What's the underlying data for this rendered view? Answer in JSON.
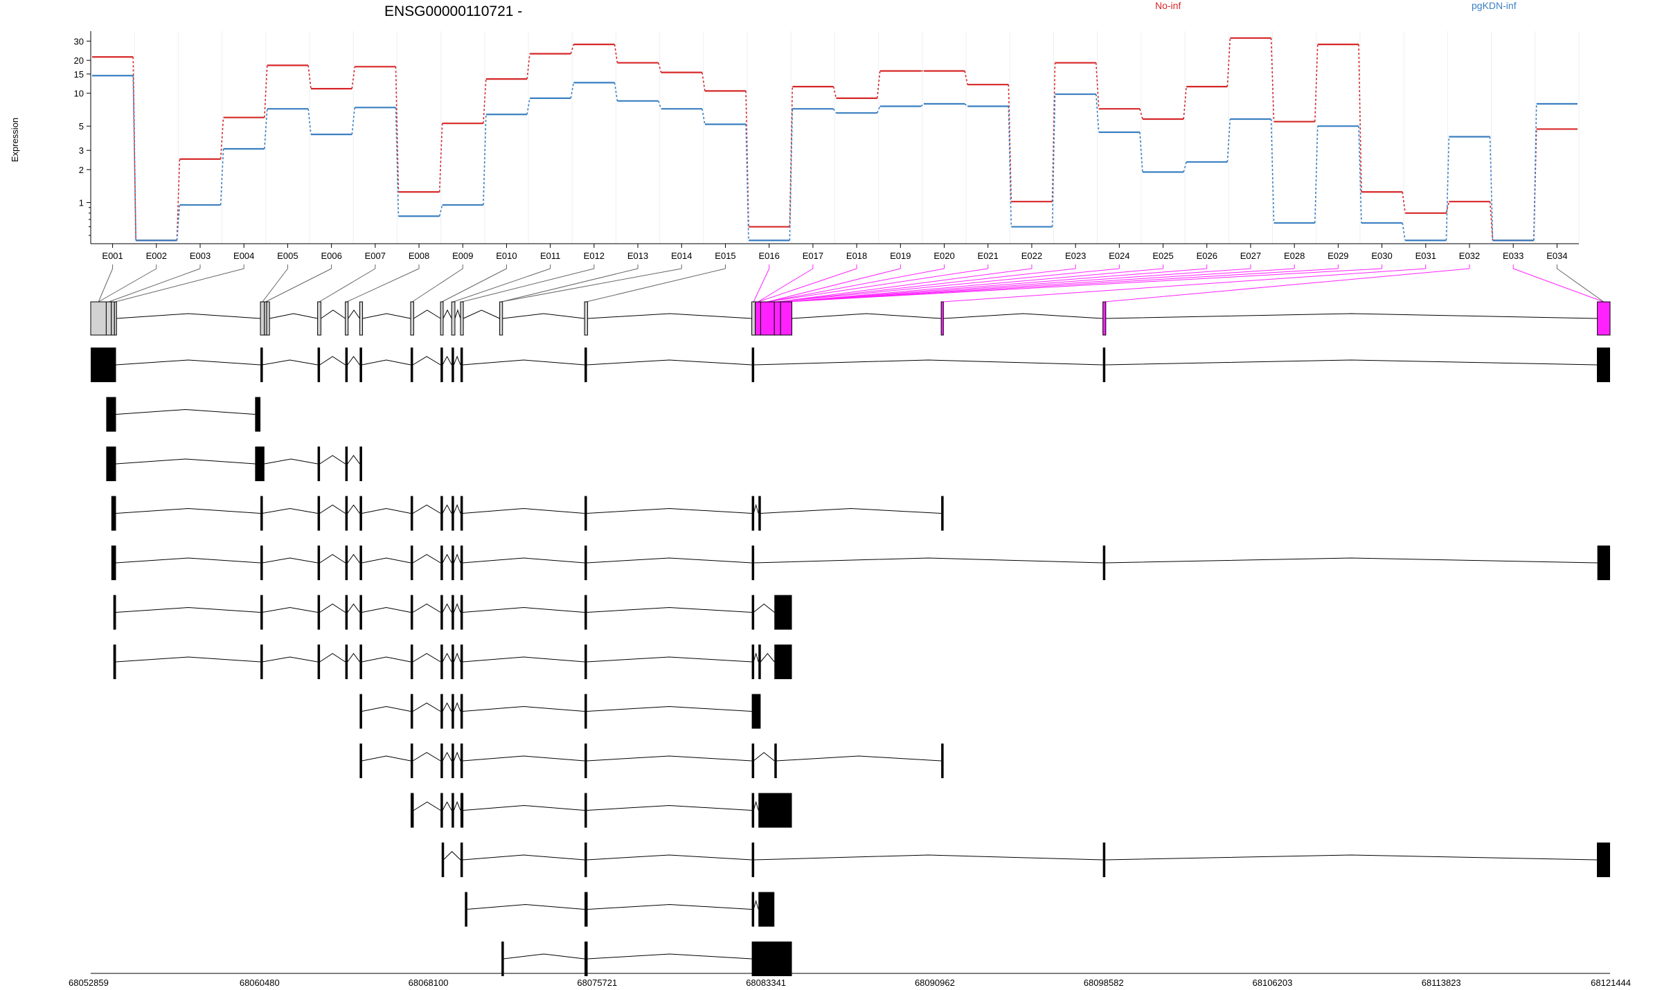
{
  "chart_data": {
    "type": "line",
    "title": "ENSG00000110721 -",
    "ylabel": "Expression",
    "yscale": "log",
    "ylim": [
      0.42,
      37
    ],
    "y_ticks": [
      1,
      2,
      3,
      5,
      10,
      15,
      20,
      30
    ],
    "categories": [
      "E001",
      "E002",
      "E003",
      "E004",
      "E005",
      "E006",
      "E007",
      "E008",
      "E009",
      "E010",
      "E011",
      "E012",
      "E013",
      "E014",
      "E015",
      "E016",
      "E017",
      "E018",
      "E019",
      "E020",
      "E021",
      "E022",
      "E023",
      "E024",
      "E025",
      "E026",
      "E027",
      "E028",
      "E029",
      "E030",
      "E031",
      "E032",
      "E033",
      "E034"
    ],
    "series": [
      {
        "name": "No-inf",
        "color": "#d62728",
        "values": [
          21.5,
          0.45,
          2.5,
          6.0,
          18.0,
          11.0,
          17.5,
          1.25,
          5.3,
          13.5,
          23.0,
          28.0,
          19.0,
          15.5,
          10.5,
          0.6,
          11.5,
          9.0,
          16.0,
          16.0,
          12.0,
          1.02,
          19.0,
          7.2,
          5.8,
          11.5,
          32.0,
          5.5,
          28.0,
          1.25,
          0.8,
          1.02,
          0.45,
          4.7
        ]
      },
      {
        "name": "pgKDN-inf",
        "color": "#3a7fc1",
        "values": [
          14.5,
          0.45,
          0.95,
          3.1,
          7.2,
          4.2,
          7.4,
          0.75,
          0.95,
          6.4,
          9.0,
          12.5,
          8.5,
          7.2,
          5.2,
          0.45,
          7.2,
          6.6,
          7.6,
          8.0,
          7.6,
          0.6,
          9.8,
          4.4,
          1.9,
          2.35,
          5.8,
          0.65,
          5.0,
          0.65,
          0.45,
          4.0,
          0.45,
          8.0
        ]
      }
    ],
    "genomic_axis": {
      "ticks": [
        "68052859",
        "68060480",
        "68068100",
        "68075721",
        "68083341",
        "68090962",
        "68098582",
        "68106203",
        "68113823",
        "68121444"
      ]
    }
  },
  "gene_model": {
    "highlight_color": "#ff22ff",
    "highlighted_exons": [
      "E015",
      "E016",
      "E017",
      "E018",
      "E019",
      "E020",
      "E021",
      "E022",
      "E023",
      "E024",
      "E025",
      "E026",
      "E027",
      "E028",
      "E029",
      "E030",
      "E031",
      "E032",
      "E033",
      "E034"
    ]
  }
}
